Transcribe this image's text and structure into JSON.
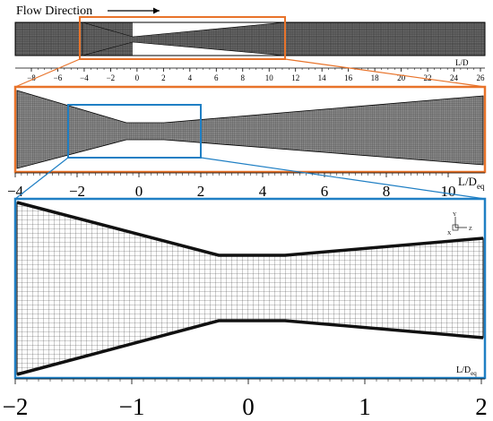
{
  "header": {
    "flow_label": "Flow Direction"
  },
  "axis_label": {
    "main": "L/D",
    "sub": "eq"
  },
  "panel1": {
    "ticks": [
      "-8",
      "-6",
      "-4",
      "-2",
      "0",
      "2",
      "4",
      "6",
      "8",
      "10",
      "12",
      "14",
      "16",
      "18",
      "20",
      "22",
      "24",
      "26"
    ],
    "axis_label_partial": "L/D"
  },
  "panel2": {
    "ticks": [
      "-4",
      "-2",
      "0",
      "2",
      "4",
      "6",
      "8",
      "10"
    ]
  },
  "panel3": {
    "ticks": [
      "-2",
      "-1",
      "0",
      "1",
      "2"
    ]
  },
  "triad": {
    "y": "Y",
    "x": "X",
    "z": "Z"
  },
  "colors": {
    "zoom1": "#e8732a",
    "zoom2": "#1f7fc4",
    "mesh": "#555555",
    "mesh_dark": "#222222"
  }
}
